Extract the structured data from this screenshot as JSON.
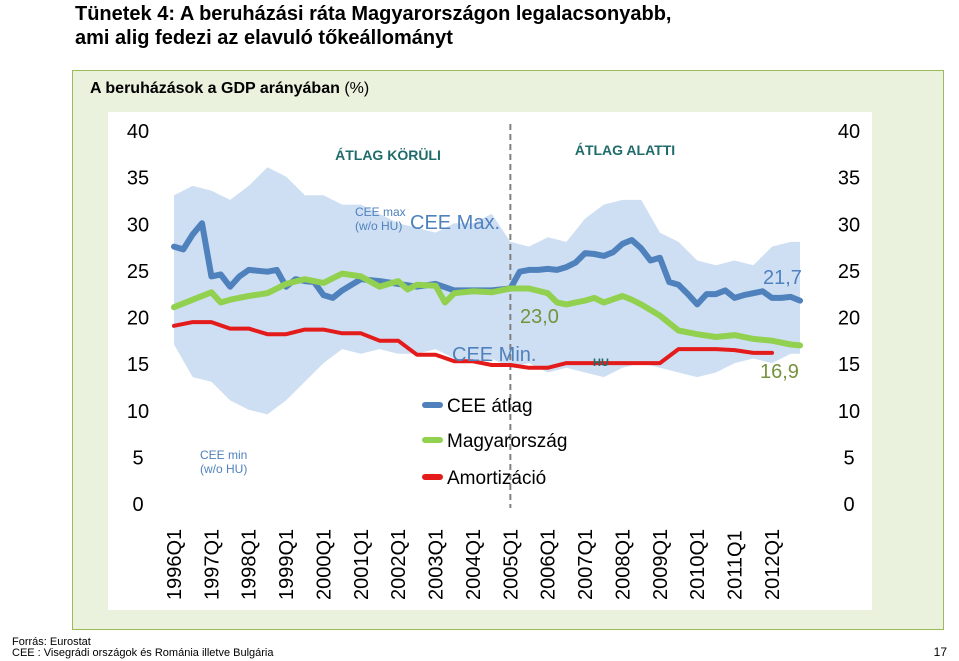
{
  "slide": {
    "title_line1": "Tünetek 4: A beruházási ráta Magyarországon legalacsonyabb,",
    "title_line2": "ami alig fedezi az elavuló tőkeállományt",
    "source": "Forrás: Eurostat",
    "note": "CEE : Visegrádi országok és Románia illetve Bulgária",
    "page_number": "17"
  },
  "chart_data": {
    "type": "line",
    "title": "A beruházások a GDP arányában",
    "unit": "(%)",
    "ylim": [
      0,
      40
    ],
    "yticks": [
      "0",
      "5",
      "10",
      "15",
      "20",
      "25",
      "30",
      "35",
      "40"
    ],
    "x_labels": [
      "1996Q1",
      "1997Q1",
      "1998Q1",
      "1999Q1",
      "2000Q1",
      "2001Q1",
      "2002Q1",
      "2003Q1",
      "2004Q1",
      "2005Q1",
      "2006Q1",
      "2007Q1",
      "2008Q1",
      "2009Q1",
      "2010Q1",
      "2011Q1",
      "2012Q1"
    ],
    "x_start": 1996.0,
    "x_end": 2012.75,
    "divider_x": 2005.0,
    "regions": [
      "ÁTLAG KÖRÜLI",
      "ÁTLAG ALATTI"
    ],
    "colors": {
      "band": "#c6d9f1",
      "cee": "#4f81bd",
      "hu": "#92d050",
      "amort": "#e31b1b",
      "tick": "#000000",
      "region": "#1f6b6b"
    },
    "band_label_max": [
      "CEE max",
      "(w/o HU)"
    ],
    "band_label_max_big": "CEE Max.",
    "band_label_min": [
      "CEE min",
      "(w/o HU)"
    ],
    "band_label_min_big": "CEE Min.",
    "value_labels": {
      "cee_end": "21,7",
      "hu_mid": "23,0",
      "hu_end": "16,9",
      "hu_tag": "HU"
    },
    "legend": [
      {
        "name": "CEE átlag",
        "color": "#4f81bd"
      },
      {
        "name": "Magyarország",
        "color": "#92d050"
      },
      {
        "name": "Amortizáció",
        "color": "#e31b1b"
      }
    ],
    "band": {
      "x": [
        1996.0,
        1996.5,
        1997.0,
        1997.5,
        1998.0,
        1998.5,
        1999.0,
        1999.5,
        2000.0,
        2000.5,
        2001.0,
        2001.5,
        2002.0,
        2002.5,
        2003.0,
        2003.5,
        2004.0,
        2004.5,
        2005.0,
        2005.5,
        2006.0,
        2006.5,
        2007.0,
        2007.5,
        2008.0,
        2008.5,
        2009.0,
        2009.5,
        2010.0,
        2010.5,
        2011.0,
        2011.5,
        2012.0,
        2012.5,
        2012.75
      ],
      "upper": [
        33.0,
        34.0,
        33.5,
        32.5,
        34.0,
        36.0,
        35.0,
        33.0,
        33.0,
        32.0,
        32.0,
        31.0,
        30.0,
        29.5,
        29.0,
        30.0,
        30.0,
        31.0,
        28.0,
        27.5,
        28.5,
        28.0,
        30.5,
        32.0,
        32.5,
        32.5,
        29.0,
        28.0,
        26.0,
        25.5,
        26.0,
        25.5,
        27.5,
        28.0,
        28.0
      ],
      "lower": [
        17.0,
        13.5,
        13.0,
        11.0,
        10.0,
        9.5,
        11.0,
        13.0,
        15.0,
        16.5,
        16.0,
        16.5,
        16.0,
        16.0,
        16.5,
        15.5,
        15.0,
        15.5,
        14.5,
        15.0,
        14.0,
        14.5,
        14.0,
        13.5,
        14.5,
        15.0,
        14.5,
        14.0,
        13.5,
        14.0,
        15.0,
        15.5,
        15.0,
        16.0,
        16.0
      ]
    },
    "series": [
      {
        "name": "CEE átlag",
        "x": [
          1996.0,
          1996.25,
          1996.5,
          1996.75,
          1997.0,
          1997.25,
          1997.5,
          1997.75,
          1998.0,
          1998.25,
          1998.5,
          1998.75,
          1999.0,
          1999.25,
          1999.5,
          1999.75,
          2000.0,
          2000.25,
          2000.5,
          2000.75,
          2001.0,
          2001.5,
          2002.0,
          2002.5,
          2003.0,
          2003.5,
          2004.0,
          2004.5,
          2005.0,
          2005.25,
          2005.5,
          2005.75,
          2006.0,
          2006.25,
          2006.5,
          2006.75,
          2007.0,
          2007.25,
          2007.5,
          2007.75,
          2008.0,
          2008.25,
          2008.5,
          2008.75,
          2009.0,
          2009.25,
          2009.5,
          2009.75,
          2010.0,
          2010.25,
          2010.5,
          2010.75,
          2011.0,
          2011.25,
          2011.5,
          2011.75,
          2012.0,
          2012.25,
          2012.5,
          2012.75
        ],
        "values": [
          27.5,
          27.2,
          28.8,
          30.0,
          24.3,
          24.5,
          23.2,
          24.3,
          25.0,
          24.9,
          24.8,
          25.0,
          23.2,
          24.0,
          23.8,
          23.7,
          22.3,
          22.0,
          22.8,
          23.4,
          24.0,
          23.8,
          23.5,
          23.2,
          23.5,
          22.8,
          22.8,
          22.8,
          23.0,
          24.8,
          25.0,
          25.0,
          25.1,
          25.0,
          25.3,
          25.8,
          26.8,
          26.7,
          26.5,
          26.9,
          27.8,
          28.2,
          27.3,
          26.0,
          26.3,
          23.7,
          23.4,
          22.4,
          21.3,
          22.4,
          22.4,
          22.8,
          22.0,
          22.3,
          22.5,
          22.7,
          22.0,
          22.0,
          22.1,
          21.7
        ]
      },
      {
        "name": "Magyarország",
        "x": [
          1996.0,
          1996.5,
          1997.0,
          1997.25,
          1997.5,
          1998.0,
          1998.5,
          1999.0,
          1999.5,
          2000.0,
          2000.5,
          2001.0,
          2001.5,
          2002.0,
          2002.25,
          2002.5,
          2003.0,
          2003.25,
          2003.5,
          2004.0,
          2004.5,
          2005.0,
          2005.5,
          2006.0,
          2006.25,
          2006.5,
          2007.0,
          2007.25,
          2007.5,
          2008.0,
          2008.25,
          2008.5,
          2009.0,
          2009.5,
          2010.0,
          2010.5,
          2011.0,
          2011.5,
          2012.0,
          2012.5,
          2012.75
        ],
        "values": [
          21.0,
          21.8,
          22.6,
          21.5,
          21.8,
          22.2,
          22.5,
          23.5,
          24.0,
          23.6,
          24.6,
          24.3,
          23.2,
          23.8,
          22.9,
          23.4,
          23.3,
          21.5,
          22.5,
          22.7,
          22.6,
          23.0,
          23.0,
          22.5,
          21.5,
          21.3,
          21.7,
          22.0,
          21.5,
          22.2,
          21.8,
          21.3,
          20.1,
          18.5,
          18.1,
          17.8,
          18.0,
          17.6,
          17.4,
          17.0,
          16.9
        ]
      },
      {
        "name": "Amortizáció",
        "x": [
          1996.0,
          1996.5,
          1997.0,
          1997.5,
          1998.0,
          1998.5,
          1999.0,
          1999.5,
          2000.0,
          2000.5,
          2001.0,
          2001.5,
          2002.0,
          2002.5,
          2003.0,
          2003.5,
          2004.0,
          2004.5,
          2005.0,
          2005.5,
          2006.0,
          2006.5,
          2007.0,
          2007.5,
          2008.0,
          2008.5,
          2009.0,
          2009.5,
          2010.0,
          2010.5,
          2011.0,
          2011.5,
          2012.0
        ],
        "values": [
          19.0,
          19.4,
          19.4,
          18.7,
          18.7,
          18.1,
          18.1,
          18.6,
          18.6,
          18.2,
          18.2,
          17.4,
          17.4,
          15.9,
          15.9,
          15.2,
          15.2,
          14.8,
          14.8,
          14.5,
          14.5,
          15.0,
          15.0,
          15.0,
          15.0,
          15.0,
          15.0,
          16.5,
          16.5,
          16.5,
          16.4,
          16.1,
          16.1
        ]
      }
    ]
  }
}
